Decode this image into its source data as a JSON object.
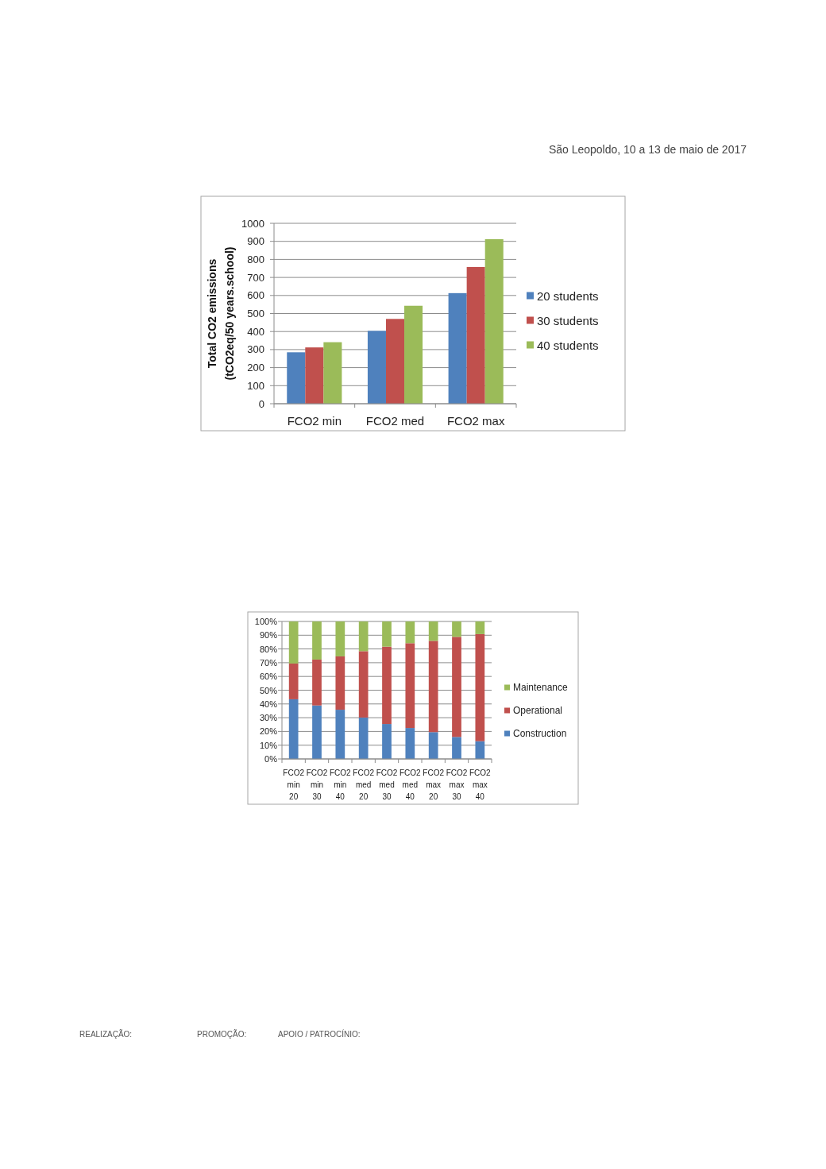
{
  "chart_data": [
    {
      "type": "bar",
      "ylabel": "Total CO2 emissions (tCO2eq/50 years.school)",
      "categories": [
        "FCO2 min",
        "FCO2 med",
        "FCO2 max"
      ],
      "series": [
        {
          "name": "20 students",
          "color": "#4f81bd",
          "values": [
            285,
            404,
            613
          ]
        },
        {
          "name": "30 students",
          "color": "#c0504d",
          "values": [
            312,
            470,
            758
          ]
        },
        {
          "name": "40 students",
          "color": "#9bbb59",
          "values": [
            341,
            543,
            912
          ]
        }
      ],
      "ylim": [
        0,
        1000
      ],
      "yticks": [
        0,
        100,
        200,
        300,
        400,
        500,
        600,
        700,
        800,
        900,
        1000
      ],
      "grid": "y",
      "legend": "right",
      "annotations": [
        "São Leopoldo, 10 a 13 de maio de 2017"
      ]
    },
    {
      "type": "bar",
      "stacked": true,
      "categories": [
        "FCO2 min 20",
        "FCO2 min 30",
        "FCO2 min 40",
        "FCO2 med 20",
        "FCO2 med 30",
        "FCO2 med 40",
        "FCO2 max 20",
        "FCO2 max 30",
        "FCO2 max 40"
      ],
      "series": [
        {
          "name": "Construction",
          "color": "#4f81bd",
          "values": [
            43.4,
            38.9,
            35.8,
            30.1,
            25.4,
            22.5,
            19.5,
            16.0,
            12.9
          ]
        },
        {
          "name": "Operational",
          "color": "#c0504d",
          "values": [
            26.0,
            33.4,
            38.8,
            48.3,
            56.3,
            61.7,
            66.4,
            72.8,
            77.9
          ]
        },
        {
          "name": "Maintenance",
          "color": "#9bbb59",
          "values": [
            30.6,
            27.7,
            25.4,
            21.6,
            18.3,
            15.8,
            14.1,
            11.2,
            9.2
          ]
        }
      ],
      "ylim": [
        0,
        100
      ],
      "yticks": [
        {
          "value": 0,
          "label": "0%"
        },
        {
          "value": 10,
          "label": "10%"
        },
        {
          "value": 20,
          "label": "20%"
        },
        {
          "value": 30,
          "label": "30%"
        },
        {
          "value": 40,
          "label": "40%"
        },
        {
          "value": 50,
          "label": "50%"
        },
        {
          "value": 60,
          "label": "60%"
        },
        {
          "value": 70,
          "label": "70%"
        },
        {
          "value": 80,
          "label": "80%"
        },
        {
          "value": 90,
          "label": "90%"
        },
        {
          "value": 100,
          "label": "100%"
        }
      ],
      "grid": "y",
      "legend": "right",
      "annotations": [
        "REALIZAÇÃO:",
        "PROMOÇÃO:",
        "APOIO / PATROCÍNIO:"
      ]
    }
  ]
}
